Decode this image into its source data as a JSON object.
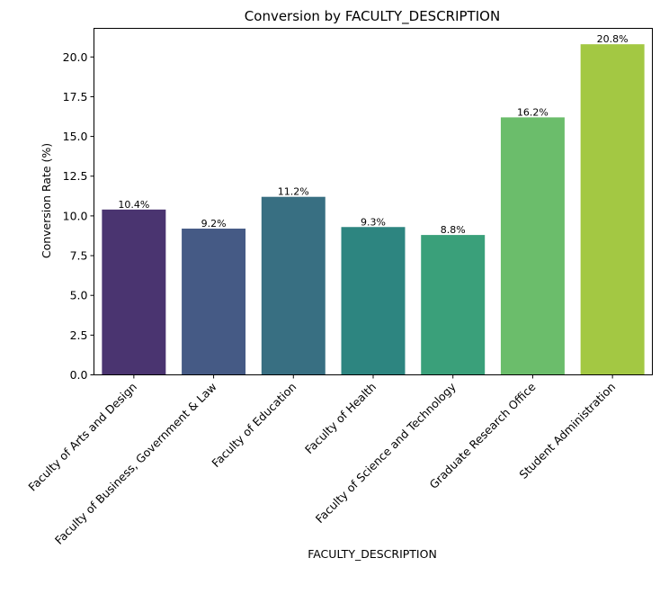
{
  "chart_data": {
    "type": "bar",
    "title": "Conversion by FACULTY_DESCRIPTION",
    "xlabel": "FACULTY_DESCRIPTION",
    "ylabel": "Conversion Rate (%)",
    "categories": [
      "Faculty of Arts and Design",
      "Faculty of Business, Government & Law",
      "Faculty of Education",
      "Faculty of Health",
      "Faculty of Science and Technology",
      "Graduate Research Office",
      "Student Administration"
    ],
    "values": [
      10.4,
      9.2,
      11.2,
      9.3,
      8.8,
      16.2,
      20.8
    ],
    "data_labels": [
      "10.4%",
      "9.2%",
      "11.2%",
      "9.3%",
      "8.8%",
      "16.2%",
      "20.8%"
    ],
    "colors": [
      "#4a3470",
      "#455a85",
      "#386f82",
      "#2d8580",
      "#3aa07a",
      "#6bbd6b",
      "#a3c843"
    ],
    "ylim": [
      0,
      21.8
    ],
    "yticks": [
      0.0,
      2.5,
      5.0,
      7.5,
      10.0,
      12.5,
      15.0,
      17.5,
      20.0
    ],
    "ytick_labels": [
      "0.0",
      "2.5",
      "5.0",
      "7.5",
      "10.0",
      "12.5",
      "15.0",
      "17.5",
      "20.0"
    ],
    "grid": false,
    "legend": "none"
  }
}
